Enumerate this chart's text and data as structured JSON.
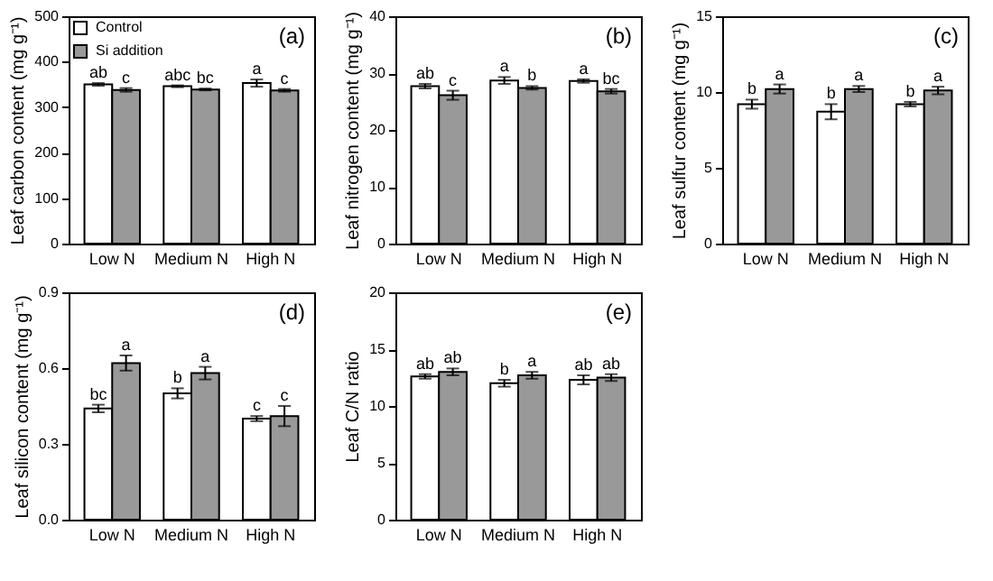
{
  "chart_data": [
    {
      "type": "bar",
      "ylabel": "Leaf carbon content (mg g⁻¹)",
      "categories": [
        "Low N",
        "Medium N",
        "High N"
      ],
      "ylim": [
        0,
        500
      ],
      "yticks": [
        0,
        100,
        200,
        300,
        400,
        500
      ],
      "legend": "top left",
      "annotations": [
        "(a)"
      ],
      "series": [
        {
          "name": "Control",
          "color": "#ffffff",
          "values": [
            350,
            346,
            353
          ],
          "errors": [
            3,
            2,
            8
          ],
          "value_labels": [
            "ab",
            "abc",
            "a"
          ]
        },
        {
          "name": "Si addition",
          "color": "#999999",
          "values": [
            338,
            339,
            337
          ],
          "errors": [
            4,
            2,
            3
          ],
          "value_labels": [
            "c",
            "bc",
            "c"
          ]
        }
      ]
    },
    {
      "type": "bar",
      "ylabel": "Leaf nitrogen content (mg g⁻¹)",
      "categories": [
        "Low N",
        "Medium N",
        "High N"
      ],
      "ylim": [
        0,
        40
      ],
      "yticks": [
        0,
        10,
        20,
        30,
        40
      ],
      "annotations": [
        "(b)"
      ],
      "series": [
        {
          "name": "Control",
          "color": "#ffffff",
          "values": [
            27.7,
            28.7,
            28.6
          ],
          "errors": [
            0.4,
            0.6,
            0.3
          ],
          "value_labels": [
            "ab",
            "a",
            "a"
          ]
        },
        {
          "name": "Si addition",
          "color": "#999999",
          "values": [
            26.1,
            27.4,
            26.8
          ],
          "errors": [
            0.8,
            0.3,
            0.4
          ],
          "value_labels": [
            "c",
            "b",
            "bc"
          ]
        }
      ]
    },
    {
      "type": "bar",
      "ylabel": "Leaf sulfur content (mg g⁻¹)",
      "categories": [
        "Low N",
        "Medium N",
        "High N"
      ],
      "ylim": [
        0,
        15
      ],
      "yticks": [
        0,
        5,
        10,
        15
      ],
      "annotations": [
        "(c)"
      ],
      "series": [
        {
          "name": "Control",
          "color": "#ffffff",
          "values": [
            9.2,
            8.7,
            9.2
          ],
          "errors": [
            0.3,
            0.5,
            0.15
          ],
          "value_labels": [
            "b",
            "b",
            "b"
          ]
        },
        {
          "name": "Si addition",
          "color": "#999999",
          "values": [
            10.2,
            10.2,
            10.1
          ],
          "errors": [
            0.3,
            0.2,
            0.25
          ],
          "value_labels": [
            "a",
            "a",
            "a"
          ]
        }
      ]
    },
    {
      "type": "bar",
      "ylabel": "Leaf silicon content (mg g⁻¹)",
      "categories": [
        "Low N",
        "Medium N",
        "High N"
      ],
      "ylim": [
        0,
        0.9
      ],
      "yticks": [
        {
          "value": 0,
          "label": "0.0"
        },
        0.3,
        0.6,
        0.9
      ],
      "annotations": [
        "(d)"
      ],
      "series": [
        {
          "name": "Control",
          "color": "#ffffff",
          "values": [
            0.44,
            0.5,
            0.4
          ],
          "errors": [
            0.015,
            0.02,
            0.01
          ],
          "value_labels": [
            "bc",
            "b",
            "c"
          ]
        },
        {
          "name": "Si addition",
          "color": "#999999",
          "values": [
            0.62,
            0.58,
            0.41
          ],
          "errors": [
            0.03,
            0.025,
            0.04
          ],
          "value_labels": [
            "a",
            "a",
            "c"
          ]
        }
      ]
    },
    {
      "type": "bar",
      "ylabel": "Leaf C/N ratio",
      "categories": [
        "Low N",
        "Medium N",
        "High N"
      ],
      "ylim": [
        0,
        20
      ],
      "yticks": [
        0,
        5,
        10,
        15,
        20
      ],
      "annotations": [
        "(e)"
      ],
      "series": [
        {
          "name": "Control",
          "color": "#ffffff",
          "values": [
            12.6,
            12.0,
            12.3
          ],
          "errors": [
            0.2,
            0.3,
            0.4
          ],
          "value_labels": [
            "ab",
            "b",
            "ab"
          ]
        },
        {
          "name": "Si addition",
          "color": "#999999",
          "values": [
            13.0,
            12.7,
            12.5
          ],
          "errors": [
            0.3,
            0.3,
            0.3
          ],
          "value_labels": [
            "ab",
            "a",
            "ab"
          ]
        }
      ]
    }
  ]
}
